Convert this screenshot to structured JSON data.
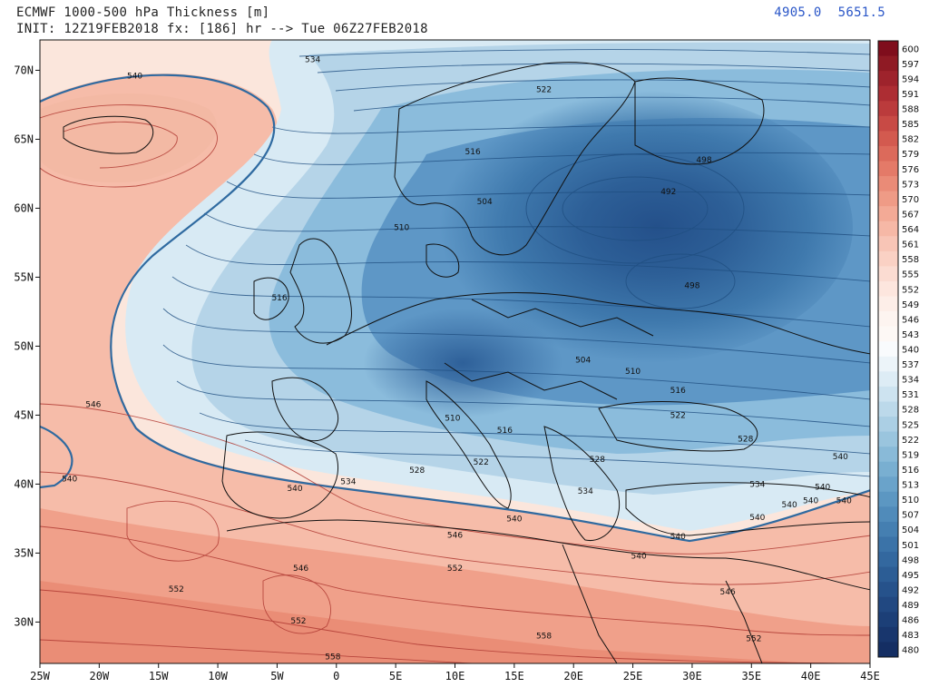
{
  "header": {
    "title": "ECMWF 1000-500 hPa Thickness [m]",
    "init_line": "INIT: 12Z19FEB2018 fx: [186] hr --> Tue 06Z27FEB2018",
    "min_value": "4905.0",
    "max_value": "5651.5"
  },
  "map": {
    "lon_labels": [
      "25W",
      "20W",
      "15W",
      "10W",
      "5W",
      "0",
      "5E",
      "10E",
      "15E",
      "20E",
      "25E",
      "30E",
      "35E",
      "40E",
      "45E"
    ],
    "lat_labels": [
      "70N",
      "65N",
      "60N",
      "55N",
      "50N",
      "45N",
      "40N",
      "35N",
      "30N"
    ],
    "contour_labels": [
      {
        "text": "534",
        "lon": -2,
        "lat": 70.8
      },
      {
        "text": "540",
        "lon": -17,
        "lat": 69.6
      },
      {
        "text": "522",
        "lon": 17.5,
        "lat": 68.6
      },
      {
        "text": "516",
        "lon": 11.5,
        "lat": 64.1
      },
      {
        "text": "504",
        "lon": 12.5,
        "lat": 60.5
      },
      {
        "text": "510",
        "lon": 5.5,
        "lat": 58.6
      },
      {
        "text": "492",
        "lon": 28,
        "lat": 61.2
      },
      {
        "text": "498",
        "lon": 31,
        "lat": 63.5
      },
      {
        "text": "498",
        "lon": 30,
        "lat": 54.4
      },
      {
        "text": "516",
        "lon": -4.8,
        "lat": 53.5
      },
      {
        "text": "504",
        "lon": 20.8,
        "lat": 49.0
      },
      {
        "text": "510",
        "lon": 25,
        "lat": 48.2
      },
      {
        "text": "516",
        "lon": 28.8,
        "lat": 46.8
      },
      {
        "text": "522",
        "lon": 28.8,
        "lat": 45.0
      },
      {
        "text": "510",
        "lon": 9.8,
        "lat": 44.8
      },
      {
        "text": "516",
        "lon": 14.2,
        "lat": 43.9
      },
      {
        "text": "528",
        "lon": 34.5,
        "lat": 43.3
      },
      {
        "text": "528",
        "lon": 22,
        "lat": 41.8
      },
      {
        "text": "522",
        "lon": 12.2,
        "lat": 41.6
      },
      {
        "text": "528",
        "lon": 6.8,
        "lat": 41.0
      },
      {
        "text": "534",
        "lon": 1,
        "lat": 40.2
      },
      {
        "text": "540",
        "lon": -3.5,
        "lat": 39.7
      },
      {
        "text": "534",
        "lon": 21,
        "lat": 39.5
      },
      {
        "text": "534",
        "lon": 35.5,
        "lat": 40.0
      },
      {
        "text": "540",
        "lon": 42.5,
        "lat": 42.0
      },
      {
        "text": "540",
        "lon": 41,
        "lat": 39.8
      },
      {
        "text": "540",
        "lon": 40,
        "lat": 38.8
      },
      {
        "text": "540",
        "lon": 42.8,
        "lat": 38.8
      },
      {
        "text": "540",
        "lon": 38.2,
        "lat": 38.5
      },
      {
        "text": "540",
        "lon": 35.5,
        "lat": 37.6
      },
      {
        "text": "540",
        "lon": 15,
        "lat": 37.5
      },
      {
        "text": "540",
        "lon": 28.8,
        "lat": 36.2
      },
      {
        "text": "540",
        "lon": 25.5,
        "lat": 34.8
      },
      {
        "text": "540",
        "lon": -22.5,
        "lat": 40.4
      },
      {
        "text": "546",
        "lon": -20.5,
        "lat": 45.8
      },
      {
        "text": "546",
        "lon": 10,
        "lat": 36.3
      },
      {
        "text": "546",
        "lon": -3,
        "lat": 33.9
      },
      {
        "text": "546",
        "lon": 33,
        "lat": 32.2
      },
      {
        "text": "552",
        "lon": 10,
        "lat": 33.9
      },
      {
        "text": "552",
        "lon": -13.5,
        "lat": 32.4
      },
      {
        "text": "552",
        "lon": -3.2,
        "lat": 30.1
      },
      {
        "text": "552",
        "lon": 35.2,
        "lat": 28.8
      },
      {
        "text": "558",
        "lon": 17.5,
        "lat": 29.0
      },
      {
        "text": "558",
        "lon": -0.3,
        "lat": 27.5
      }
    ]
  },
  "colorbar": {
    "labels": [
      "600",
      "597",
      "594",
      "591",
      "588",
      "585",
      "582",
      "579",
      "576",
      "573",
      "570",
      "567",
      "564",
      "561",
      "558",
      "555",
      "552",
      "549",
      "546",
      "543",
      "540",
      "537",
      "534",
      "531",
      "528",
      "525",
      "522",
      "519",
      "516",
      "513",
      "510",
      "507",
      "504",
      "501",
      "498",
      "495",
      "492",
      "489",
      "486",
      "483",
      "480"
    ],
    "colors": [
      "#7f0d1c",
      "#8f1a24",
      "#9e232c",
      "#ad2d33",
      "#bb3b3c",
      "#c84a45",
      "#d35a4f",
      "#dc6a5b",
      "#e47a68",
      "#ea8b77",
      "#ef9b86",
      "#f3aa96",
      "#f6b8a6",
      "#f8c5b6",
      "#fad1c4",
      "#fbdcd2",
      "#fde6de",
      "#fdeee8",
      "#fdf4f0",
      "#fdf8f5",
      "#f9fbfd",
      "#ecf4f9",
      "#ddecf5",
      "#cde3f0",
      "#bcd9ea",
      "#abcfe4",
      "#9ac5de",
      "#89bad8",
      "#79afd1",
      "#6aa3ca",
      "#5c97c2",
      "#508bba",
      "#457fb1",
      "#3b73a8",
      "#33689f",
      "#2c5d95",
      "#26528b",
      "#214881",
      "#1c3f77",
      "#18366d",
      "#142e63"
    ]
  }
}
